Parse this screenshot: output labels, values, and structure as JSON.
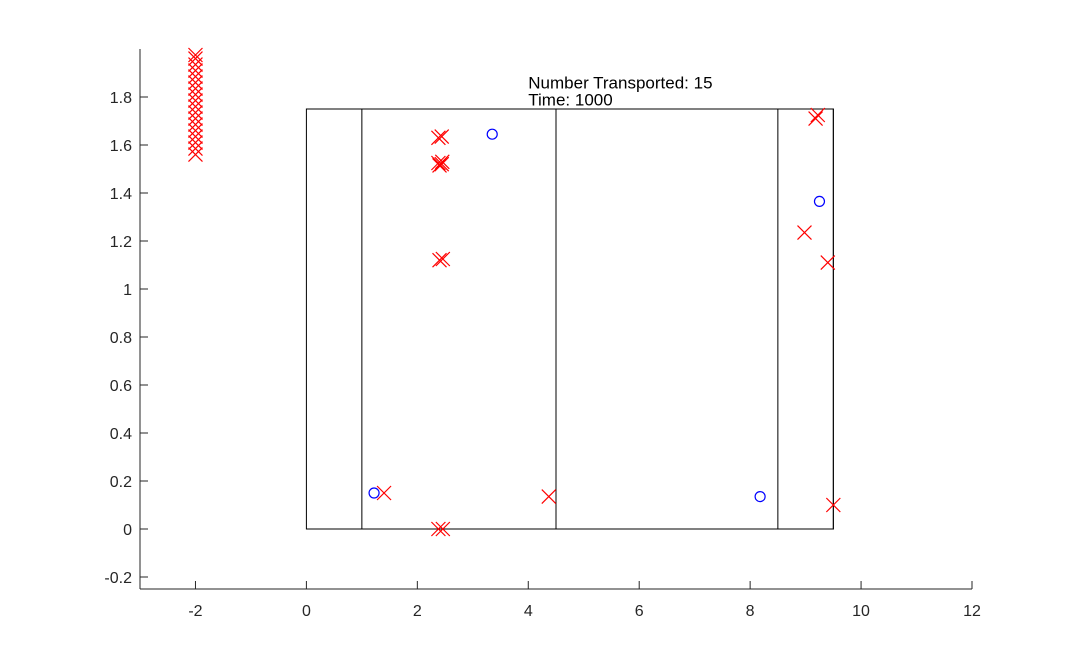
{
  "chart_data": {
    "type": "scatter",
    "title": "",
    "xlabel": "",
    "ylabel": "",
    "xlim": [
      -3,
      12
    ],
    "ylim": [
      -0.25,
      2.0
    ],
    "xticks": [
      -2,
      0,
      2,
      4,
      6,
      8,
      10,
      12
    ],
    "xtick_labels": [
      "-2",
      "0",
      "2",
      "4",
      "6",
      "8",
      "10",
      "12"
    ],
    "yticks": [
      -0.2,
      0,
      0.2,
      0.4,
      0.6,
      0.8,
      1,
      1.2,
      1.4,
      1.6,
      1.8
    ],
    "ytick_labels": [
      "-0.2",
      "0",
      "0.2",
      "0.4",
      "0.6",
      "0.8",
      "1",
      "1.2",
      "1.4",
      "1.6",
      "1.8"
    ],
    "grid": false,
    "legend": false,
    "colors": {
      "cross": "#ff0000",
      "circle": "#0000ff",
      "frame": "#000000",
      "axis": "#262626"
    },
    "annotations": [
      {
        "text": "Number Transported: 15",
        "x": 4.0,
        "y": 1.86
      },
      {
        "text": "Time: 1000",
        "x": 4.0,
        "y": 1.79
      }
    ],
    "regions": [
      {
        "x": [
          0,
          9.5
        ],
        "y": [
          0,
          1.75
        ]
      },
      {
        "x": [
          1,
          4.5
        ],
        "y": [
          0,
          1.75
        ]
      },
      {
        "x": [
          8.5,
          9.5
        ],
        "y": [
          0,
          1.75
        ]
      }
    ],
    "series": [
      {
        "marker": "x",
        "x": [
          -2,
          -2,
          -2,
          -2,
          -2,
          -2,
          -2,
          -2,
          -2,
          -2,
          -2,
          -2,
          -2,
          -2,
          -2,
          -2,
          -2,
          -2,
          2.38,
          2.44,
          2.38,
          2.45,
          2.4,
          2.44,
          2.4,
          2.46,
          2.38,
          2.46,
          1.4,
          4.37,
          8.98,
          9.18,
          9.22,
          9.4,
          9.5
        ],
        "y": [
          1.56,
          1.585,
          1.61,
          1.635,
          1.66,
          1.685,
          1.71,
          1.735,
          1.76,
          1.785,
          1.81,
          1.835,
          1.86,
          1.885,
          1.91,
          1.935,
          1.96,
          1.975,
          1.63,
          1.635,
          1.525,
          1.53,
          1.515,
          1.52,
          1.12,
          1.125,
          0.0,
          0.0,
          0.15,
          0.135,
          1.235,
          1.71,
          1.725,
          1.11,
          0.1
        ]
      },
      {
        "marker": "o",
        "x": [
          3.35,
          1.22,
          8.18,
          9.25
        ],
        "y": [
          1.645,
          0.15,
          0.135,
          1.365
        ]
      }
    ]
  }
}
